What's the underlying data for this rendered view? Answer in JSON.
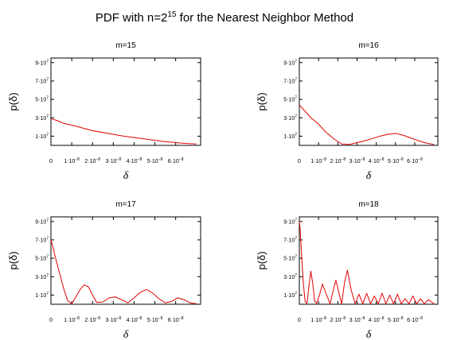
{
  "figure": {
    "title_base": "PDF with n=2",
    "title_exp": "15",
    "title_tail": " for the Nearest Neighbor Method"
  },
  "axes_text": {
    "ylabel": "p(δ)",
    "xlabel": "δ"
  },
  "ticks": {
    "x": [
      {
        "value": 0,
        "label": "0"
      },
      {
        "value": 1e-08,
        "label": "1·10",
        "exp": "−8"
      },
      {
        "value": 2e-08,
        "label": "2·10",
        "exp": "−8"
      },
      {
        "value": 3e-08,
        "label": "3·10",
        "exp": "−8"
      },
      {
        "value": 4e-08,
        "label": "4·10",
        "exp": "−8"
      },
      {
        "value": 5e-08,
        "label": "5·10",
        "exp": "−8"
      },
      {
        "value": 6e-08,
        "label": "6·10",
        "exp": "−8"
      }
    ],
    "y": [
      {
        "value": 10000000,
        "label": "1·10",
        "exp": "7"
      },
      {
        "value": 30000000,
        "label": "3·10",
        "exp": "7"
      },
      {
        "value": 50000000,
        "label": "5·10",
        "exp": "7"
      },
      {
        "value": 70000000,
        "label": "7·10",
        "exp": "7"
      },
      {
        "value": 90000000,
        "label": "9·10",
        "exp": "7"
      }
    ]
  },
  "chart_data": [
    {
      "type": "line",
      "title": "m=15",
      "xlabel": "δ",
      "ylabel": "p(δ)",
      "xlim": [
        0,
        7.2e-08
      ],
      "ylim": [
        0,
        95000000
      ],
      "line_color": "#e00000",
      "grid": false,
      "x": [
        0,
        3e-09,
        6e-09,
        1e-08,
        1.5e-08,
        2e-08,
        2.5e-08,
        3e-08,
        3.5e-08,
        4e-08,
        4.5e-08,
        5e-08,
        5.5e-08,
        6e-08,
        6.5e-08,
        7e-08
      ],
      "y": [
        29000000,
        27000000,
        24000000,
        22000000,
        19000000,
        16000000,
        14000000,
        12000000,
        10000000,
        8500000,
        7000000,
        5500000,
        4000000,
        3000000,
        2000000,
        1500000
      ]
    },
    {
      "type": "line",
      "title": "m=16",
      "xlabel": "δ",
      "ylabel": "p(δ)",
      "xlim": [
        0,
        7.2e-08
      ],
      "ylim": [
        0,
        95000000
      ],
      "line_color": "#e00000",
      "grid": false,
      "x": [
        0,
        3e-09,
        6e-09,
        1e-08,
        1.4e-08,
        1.8e-08,
        2.2e-08,
        2.6e-08,
        3e-08,
        3.4e-08,
        3.8e-08,
        4.2e-08,
        4.6e-08,
        5e-08,
        5.4e-08,
        5.8e-08,
        6.2e-08,
        6.6e-08,
        7e-08
      ],
      "y": [
        44000000,
        37000000,
        30000000,
        23000000,
        14000000,
        7000000,
        1500000,
        1000000,
        3000000,
        5000000,
        7500000,
        10000000,
        12000000,
        13000000,
        11000000,
        8000000,
        5000000,
        2500000,
        1000000
      ]
    },
    {
      "type": "line",
      "title": "m=17",
      "xlabel": "δ",
      "ylabel": "p(δ)",
      "xlim": [
        0,
        7.2e-08
      ],
      "ylim": [
        0,
        95000000
      ],
      "line_color": "#e00000",
      "grid": false,
      "x": [
        0,
        1e-09,
        2e-09,
        4e-09,
        6e-09,
        8e-09,
        1e-08,
        1.2e-08,
        1.4e-08,
        1.6e-08,
        1.8e-08,
        2e-08,
        2.2e-08,
        2.5e-08,
        2.8e-08,
        3.1e-08,
        3.4e-08,
        3.7e-08,
        4e-08,
        4.3e-08,
        4.6e-08,
        4.9e-08,
        5.2e-08,
        5.5e-08,
        5.8e-08,
        6.1e-08,
        6.4e-08,
        6.7e-08,
        7e-08
      ],
      "y": [
        70000000,
        62000000,
        52000000,
        35000000,
        18000000,
        4000000,
        500000,
        8000000,
        16000000,
        21000000,
        19000000,
        10000000,
        2000000,
        2500000,
        7000000,
        8000000,
        5000000,
        1500000,
        7000000,
        13000000,
        16000000,
        12000000,
        6000000,
        1500000,
        3000000,
        7000000,
        5000000,
        1500000,
        500000
      ]
    },
    {
      "type": "line",
      "title": "m=18",
      "xlabel": "δ",
      "ylabel": "p(δ)",
      "xlim": [
        0,
        7.2e-08
      ],
      "ylim": [
        0,
        95000000
      ],
      "line_color": "#e00000",
      "grid": false,
      "x": [
        0,
        5e-10,
        1e-09,
        2e-09,
        3e-09,
        4e-09,
        5e-09,
        6e-09,
        7e-09,
        8e-09,
        9e-09,
        1.05e-08,
        1.2e-08,
        1.4e-08,
        1.6e-08,
        1.75e-08,
        1.9e-08,
        2.05e-08,
        2.2e-08,
        2.35e-08,
        2.5e-08,
        2.7e-08,
        2.9e-08,
        3.1e-08,
        3.3e-08,
        3.5e-08,
        3.7e-08,
        3.9e-08,
        4.1e-08,
        4.3e-08,
        4.5e-08,
        4.7e-08,
        4.9e-08,
        5.1e-08,
        5.3e-08,
        5.5e-08,
        5.7e-08,
        5.9e-08,
        6.1e-08,
        6.3e-08,
        6.5e-08,
        6.7e-08,
        7e-08
      ],
      "y": [
        90000000,
        80000000,
        60000000,
        25000000,
        3000000,
        1000000,
        20000000,
        36000000,
        22000000,
        3000000,
        1000000,
        10000000,
        22000000,
        11000000,
        500000,
        14000000,
        26000000,
        13000000,
        500000,
        24000000,
        37000000,
        15000000,
        500000,
        11000000,
        500000,
        12000000,
        500000,
        9000000,
        500000,
        12000000,
        500000,
        10000000,
        500000,
        11000000,
        500000,
        6000000,
        500000,
        9000000,
        500000,
        6000000,
        500000,
        5000000,
        500000
      ]
    }
  ]
}
